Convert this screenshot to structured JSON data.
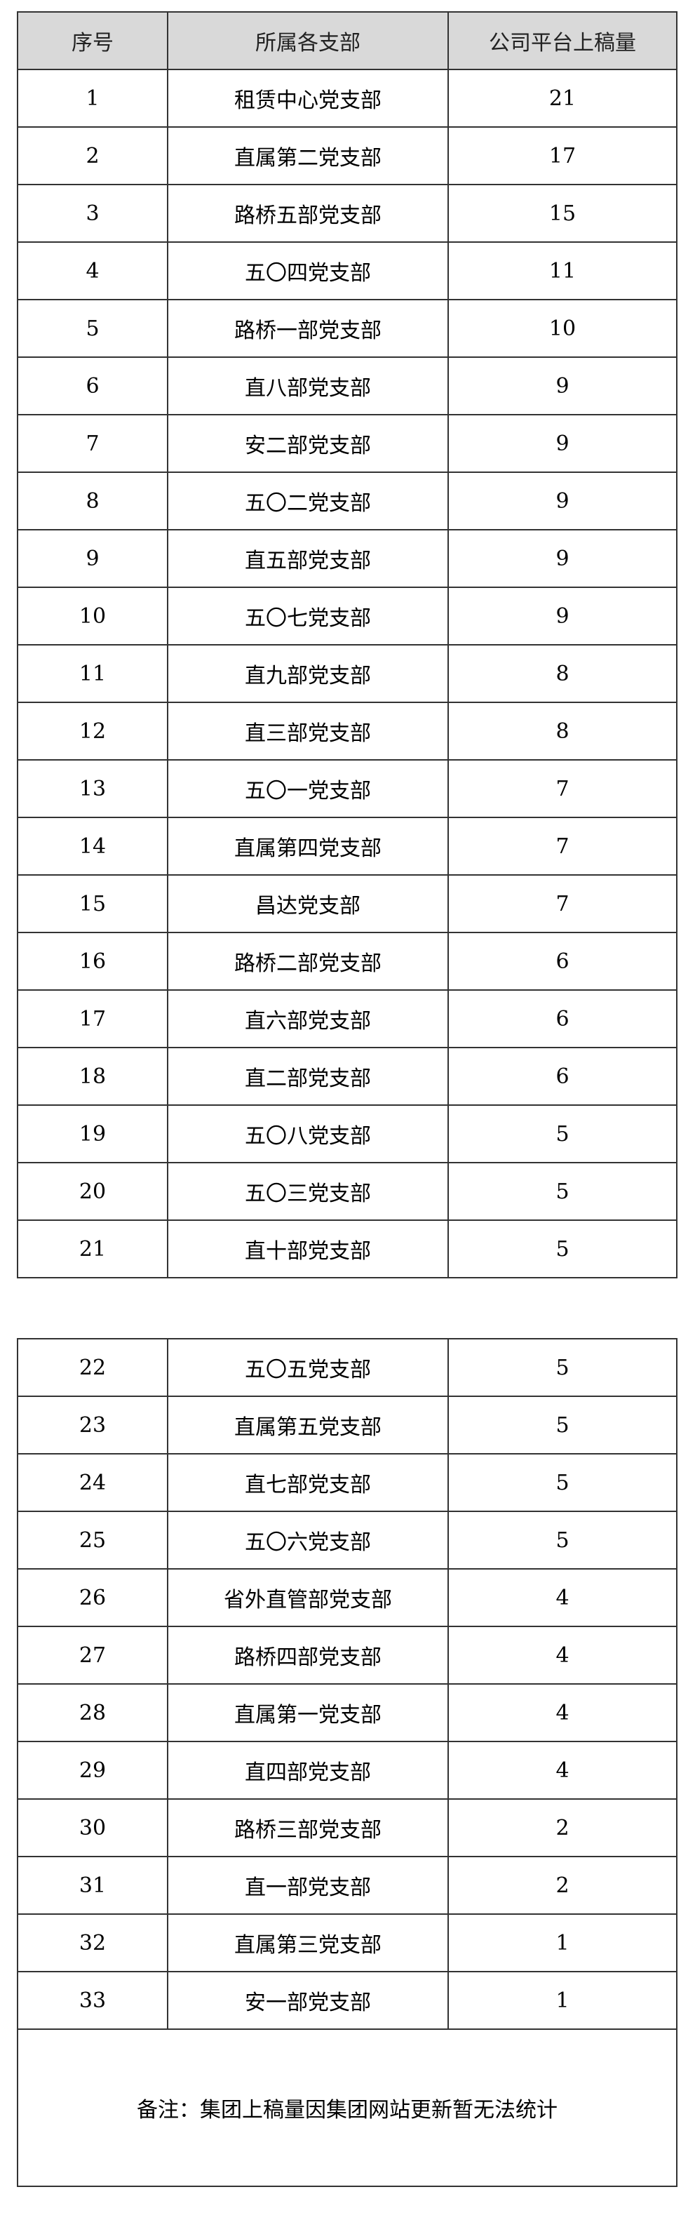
{
  "headers": [
    "序号",
    "所属各支部",
    "公司平台上稿量"
  ],
  "rows": [
    [
      "1",
      "租赁中心党支部",
      "21"
    ],
    [
      "2",
      "直属第二党支部",
      "17"
    ],
    [
      "3",
      "路桥五部党支部",
      "15"
    ],
    [
      "4",
      "五〇四党支部",
      "11"
    ],
    [
      "5",
      "路桥一部党支部",
      "10"
    ],
    [
      "6",
      "直八部党支部",
      "9"
    ],
    [
      "7",
      "安二部党支部",
      "9"
    ],
    [
      "8",
      "五〇二党支部",
      "9"
    ],
    [
      "9",
      "直五部党支部",
      "9"
    ],
    [
      "10",
      "五〇七党支部",
      "9"
    ],
    [
      "11",
      "直九部党支部",
      "8"
    ],
    [
      "12",
      "直三部党支部",
      "8"
    ],
    [
      "13",
      "五〇一党支部",
      "7"
    ],
    [
      "14",
      "直属第四党支部",
      "7"
    ],
    [
      "15",
      "昌达党支部",
      "7"
    ],
    [
      "16",
      "路桥二部党支部",
      "6"
    ],
    [
      "17",
      "直六部党支部",
      "6"
    ],
    [
      "18",
      "直二部党支部",
      "6"
    ],
    [
      "19",
      "五〇八党支部",
      "5"
    ],
    [
      "20",
      "五〇三党支部",
      "5"
    ],
    [
      "21",
      "直十部党支部",
      "5"
    ],
    [
      "22",
      "五〇五党支部",
      "5"
    ],
    [
      "23",
      "直属第五党支部",
      "5"
    ],
    [
      "24",
      "直七部党支部",
      "5"
    ],
    [
      "25",
      "五〇六党支部",
      "5"
    ],
    [
      "26",
      "省外直管部党支部",
      "4"
    ],
    [
      "27",
      "路桥四部党支部",
      "4"
    ],
    [
      "28",
      "直属第一党支部",
      "4"
    ],
    [
      "29",
      "直四部党支部",
      "4"
    ],
    [
      "30",
      "路桥三部党支部",
      "2"
    ],
    [
      "31",
      "直一部党支部",
      "2"
    ],
    [
      "32",
      "直属第三党支部",
      "1"
    ],
    [
      "33",
      "安一部党支部",
      "1"
    ]
  ],
  "note": "备注：集团上稿量因集团网站更新暂无法统计",
  "colors": {
    "header_bg": "#d9d9d9",
    "border": "#333333"
  }
}
